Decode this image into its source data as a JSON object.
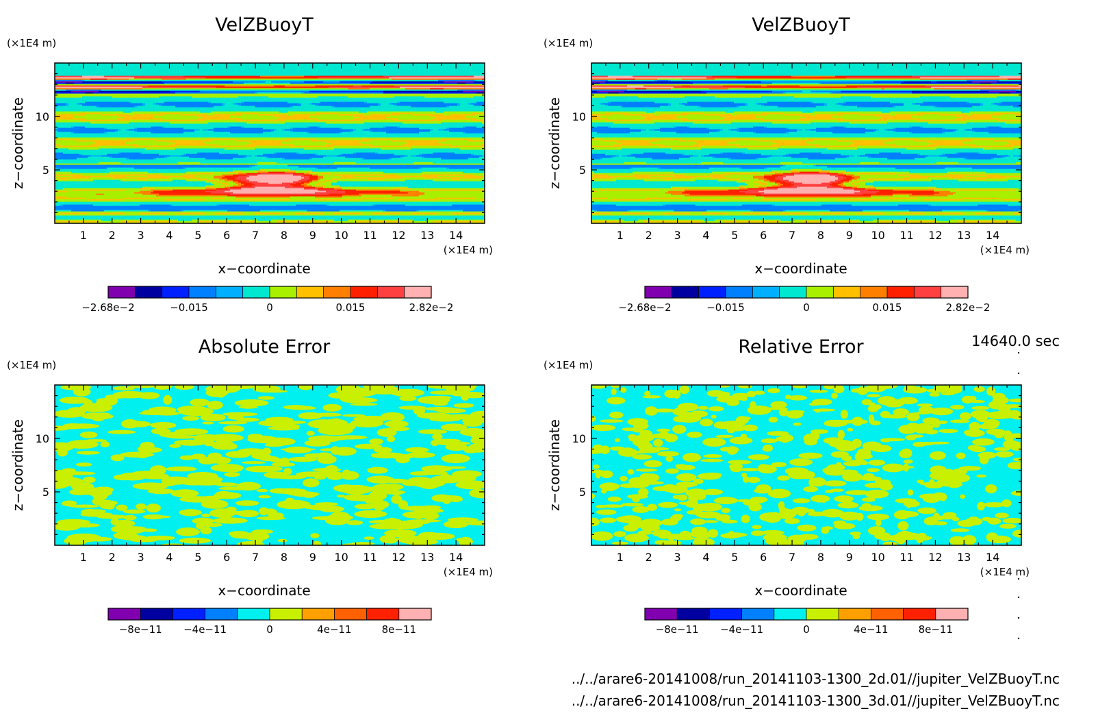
{
  "figure": {
    "timestamp": "14640.0 sec",
    "footer_lines": [
      "../../arare6-20141008/run_20141103-1300_2d.01//jupiter_VelZBuoyT.nc",
      "../../arare6-20141008/run_20141103-1300_3d.01//jupiter_VelZBuoyT.nc"
    ]
  },
  "chart_data": [
    {
      "type": "heatmap",
      "title": "VelZBuoyT",
      "xlabel": "x−coordinate",
      "ylabel": "z−coordinate",
      "x_unit": "(×1E4 m)",
      "y_unit": "(×1E4 m)",
      "xlim": [
        0,
        15
      ],
      "ylim": [
        0,
        15
      ],
      "x_ticks": [
        "1",
        "2",
        "3",
        "4",
        "5",
        "6",
        "7",
        "8",
        "9",
        "10",
        "11",
        "12",
        "13",
        "14"
      ],
      "y_ticks": [
        "5",
        "10"
      ],
      "pattern": "field",
      "colorbar": {
        "colors": [
          "#8000b0",
          "#0000a0",
          "#0020ff",
          "#0080ff",
          "#00b0ff",
          "#00e8d0",
          "#a8f000",
          "#ffc000",
          "#ff8000",
          "#ff2000",
          "#ff4040",
          "#ffb0b0"
        ],
        "labels": [
          "−2.68e−2",
          "−0.015",
          "0",
          "0.015",
          "2.82e−2"
        ],
        "range": [
          -0.0268,
          0.0282
        ]
      },
      "grid": false
    },
    {
      "type": "heatmap",
      "title": "VelZBuoyT",
      "xlabel": "x−coordinate",
      "ylabel": "z−coordinate",
      "x_unit": "(×1E4 m)",
      "y_unit": "(×1E4 m)",
      "xlim": [
        0,
        15
      ],
      "ylim": [
        0,
        15
      ],
      "x_ticks": [
        "1",
        "2",
        "3",
        "4",
        "5",
        "6",
        "7",
        "8",
        "9",
        "10",
        "11",
        "12",
        "13",
        "14"
      ],
      "y_ticks": [
        "5",
        "10"
      ],
      "pattern": "field",
      "colorbar": {
        "colors": [
          "#8000b0",
          "#0000a0",
          "#0020ff",
          "#0080ff",
          "#00b0ff",
          "#00e8d0",
          "#a8f000",
          "#ffc000",
          "#ff8000",
          "#ff2000",
          "#ff4040",
          "#ffb0b0"
        ],
        "labels": [
          "−2.68e−2",
          "−0.015",
          "0",
          "0.015",
          "2.82e−2"
        ],
        "range": [
          -0.0268,
          0.0282
        ]
      },
      "grid": false
    },
    {
      "type": "heatmap",
      "title": "Absolute Error",
      "xlabel": "x−coordinate",
      "ylabel": "z−coordinate",
      "x_unit": "(×1E4 m)",
      "y_unit": "(×1E4 m)",
      "xlim": [
        0,
        15
      ],
      "ylim": [
        0,
        15
      ],
      "x_ticks": [
        "1",
        "2",
        "3",
        "4",
        "5",
        "6",
        "7",
        "8",
        "9",
        "10",
        "11",
        "12",
        "13",
        "14"
      ],
      "y_ticks": [
        "5",
        "10"
      ],
      "pattern": "noise",
      "colorbar": {
        "colors": [
          "#8000b0",
          "#0000a0",
          "#0020ff",
          "#0080ff",
          "#00f0f0",
          "#c8f000",
          "#ffa000",
          "#ff6000",
          "#ff2000",
          "#ffb0b0"
        ],
        "labels": [
          "−8e−11",
          "−4e−11",
          "0",
          "4e−11",
          "8e−11"
        ]
      },
      "grid": false
    },
    {
      "type": "heatmap",
      "title": "Relative Error",
      "xlabel": "x−coordinate",
      "ylabel": "z−coordinate",
      "x_unit": "(×1E4 m)",
      "y_unit": "(×1E4 m)",
      "xlim": [
        0,
        15
      ],
      "ylim": [
        0,
        15
      ],
      "x_ticks": [
        "1",
        "2",
        "3",
        "4",
        "5",
        "6",
        "7",
        "8",
        "9",
        "10",
        "11",
        "12",
        "13",
        "14"
      ],
      "y_ticks": [
        "5",
        "10"
      ],
      "pattern": "noise",
      "colorbar": {
        "colors": [
          "#8000b0",
          "#0000a0",
          "#0020ff",
          "#0080ff",
          "#00f0f0",
          "#c8f000",
          "#ffa000",
          "#ff6000",
          "#ff2000",
          "#ffb0b0"
        ],
        "labels": [
          "−8e−11",
          "−4e−11",
          "0",
          "4e−11",
          "8e−11"
        ]
      },
      "grid": false
    }
  ]
}
